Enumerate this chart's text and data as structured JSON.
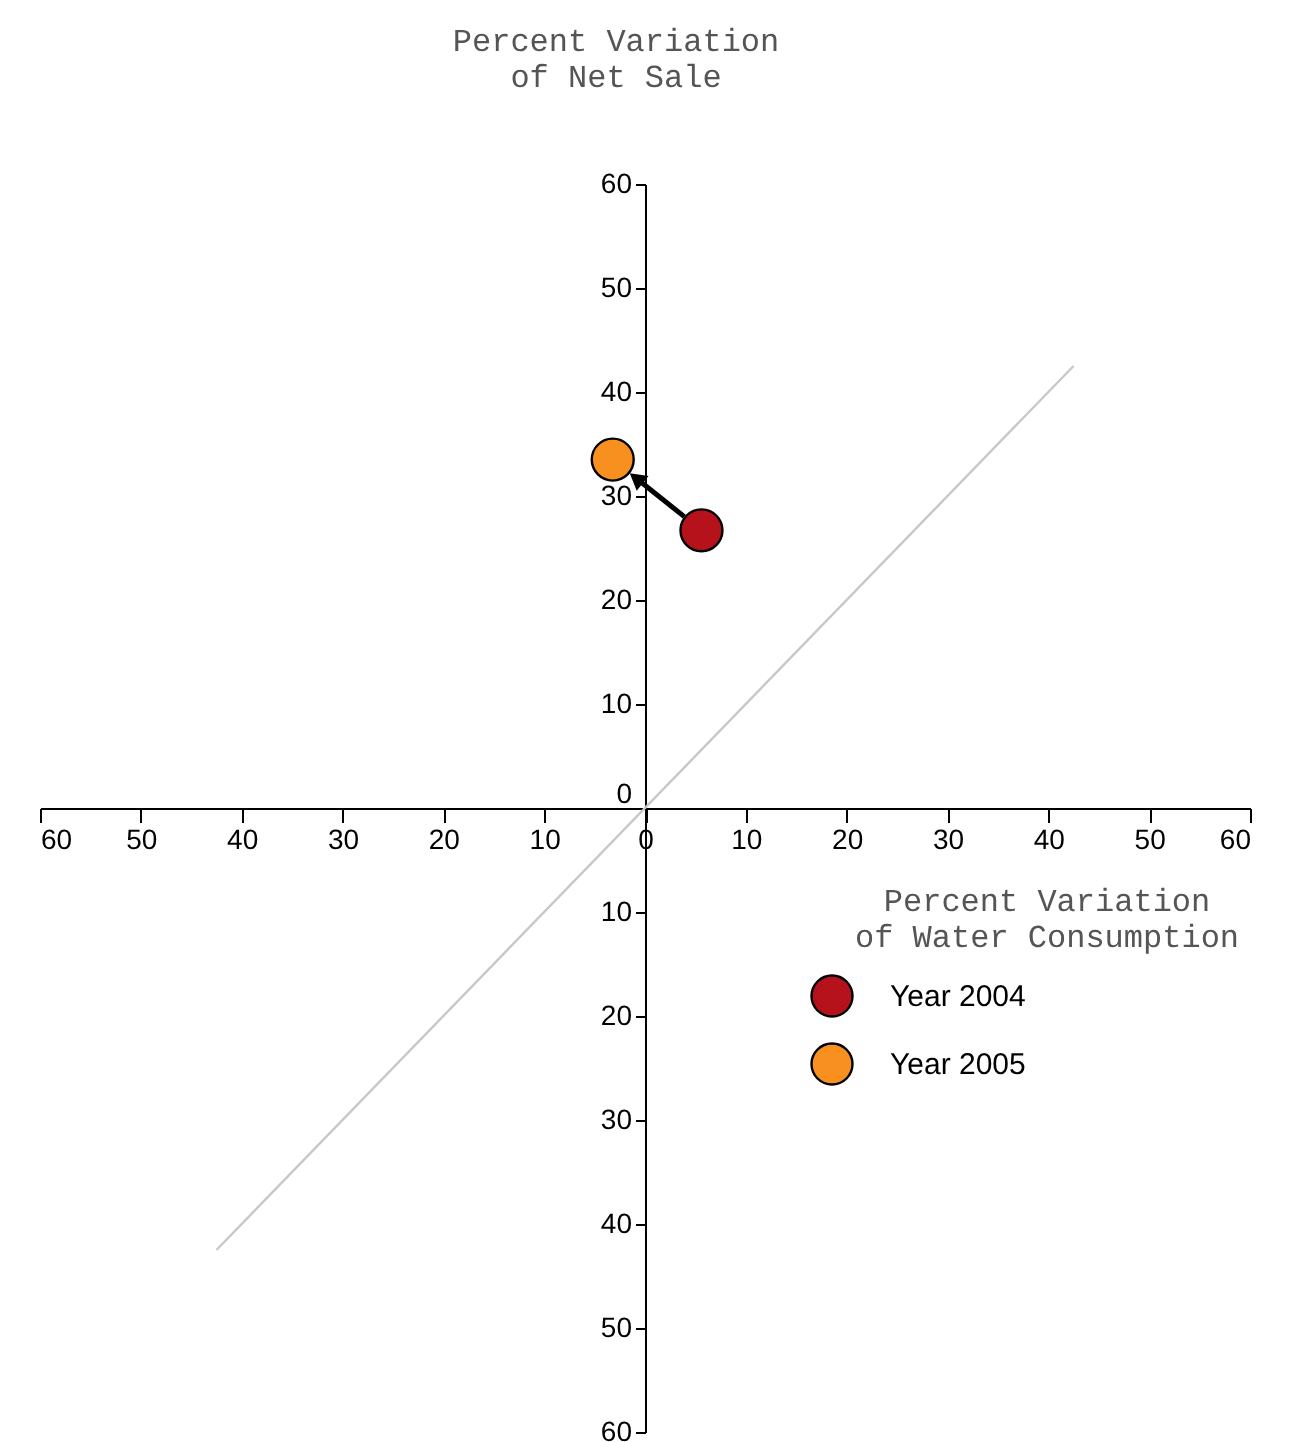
{
  "chart_data": {
    "type": "scatter",
    "xlabel": "Percent Variation\nof Water Consumption",
    "ylabel": "Percent Variation\nof Net Sale",
    "xlim": [
      -60,
      60
    ],
    "ylim": [
      -60,
      60
    ],
    "xticks": [
      {
        "value": -60,
        "label": "60"
      },
      {
        "value": -50,
        "label": "50"
      },
      {
        "value": -40,
        "label": "40"
      },
      {
        "value": -30,
        "label": "30"
      },
      {
        "value": -20,
        "label": "20"
      },
      {
        "value": -10,
        "label": "10"
      },
      0,
      10,
      20,
      30,
      40,
      50,
      60
    ],
    "yticks": [
      {
        "value": -60,
        "label": "60"
      },
      {
        "value": -50,
        "label": "50"
      },
      {
        "value": -40,
        "label": "40"
      },
      {
        "value": -30,
        "label": "30"
      },
      {
        "value": -20,
        "label": "20"
      },
      {
        "value": -10,
        "label": "10"
      },
      0,
      10,
      20,
      30,
      40,
      50,
      60
    ],
    "series": [
      {
        "type": "line",
        "marker": "none",
        "color": "#c8c8c8",
        "x": [
          -42.5,
          42.5
        ],
        "values": [
          -42.5,
          42.5
        ]
      },
      {
        "name": "Year 2004",
        "color": "#b5121b",
        "x": [
          5.6
        ],
        "values": [
          26.7
        ]
      },
      {
        "name": "Year 2005",
        "color": "#f7901e",
        "x": [
          -3.2
        ],
        "values": [
          33.5
        ]
      }
    ],
    "marker": "circle",
    "grid": false,
    "legend": "bottom right"
  }
}
